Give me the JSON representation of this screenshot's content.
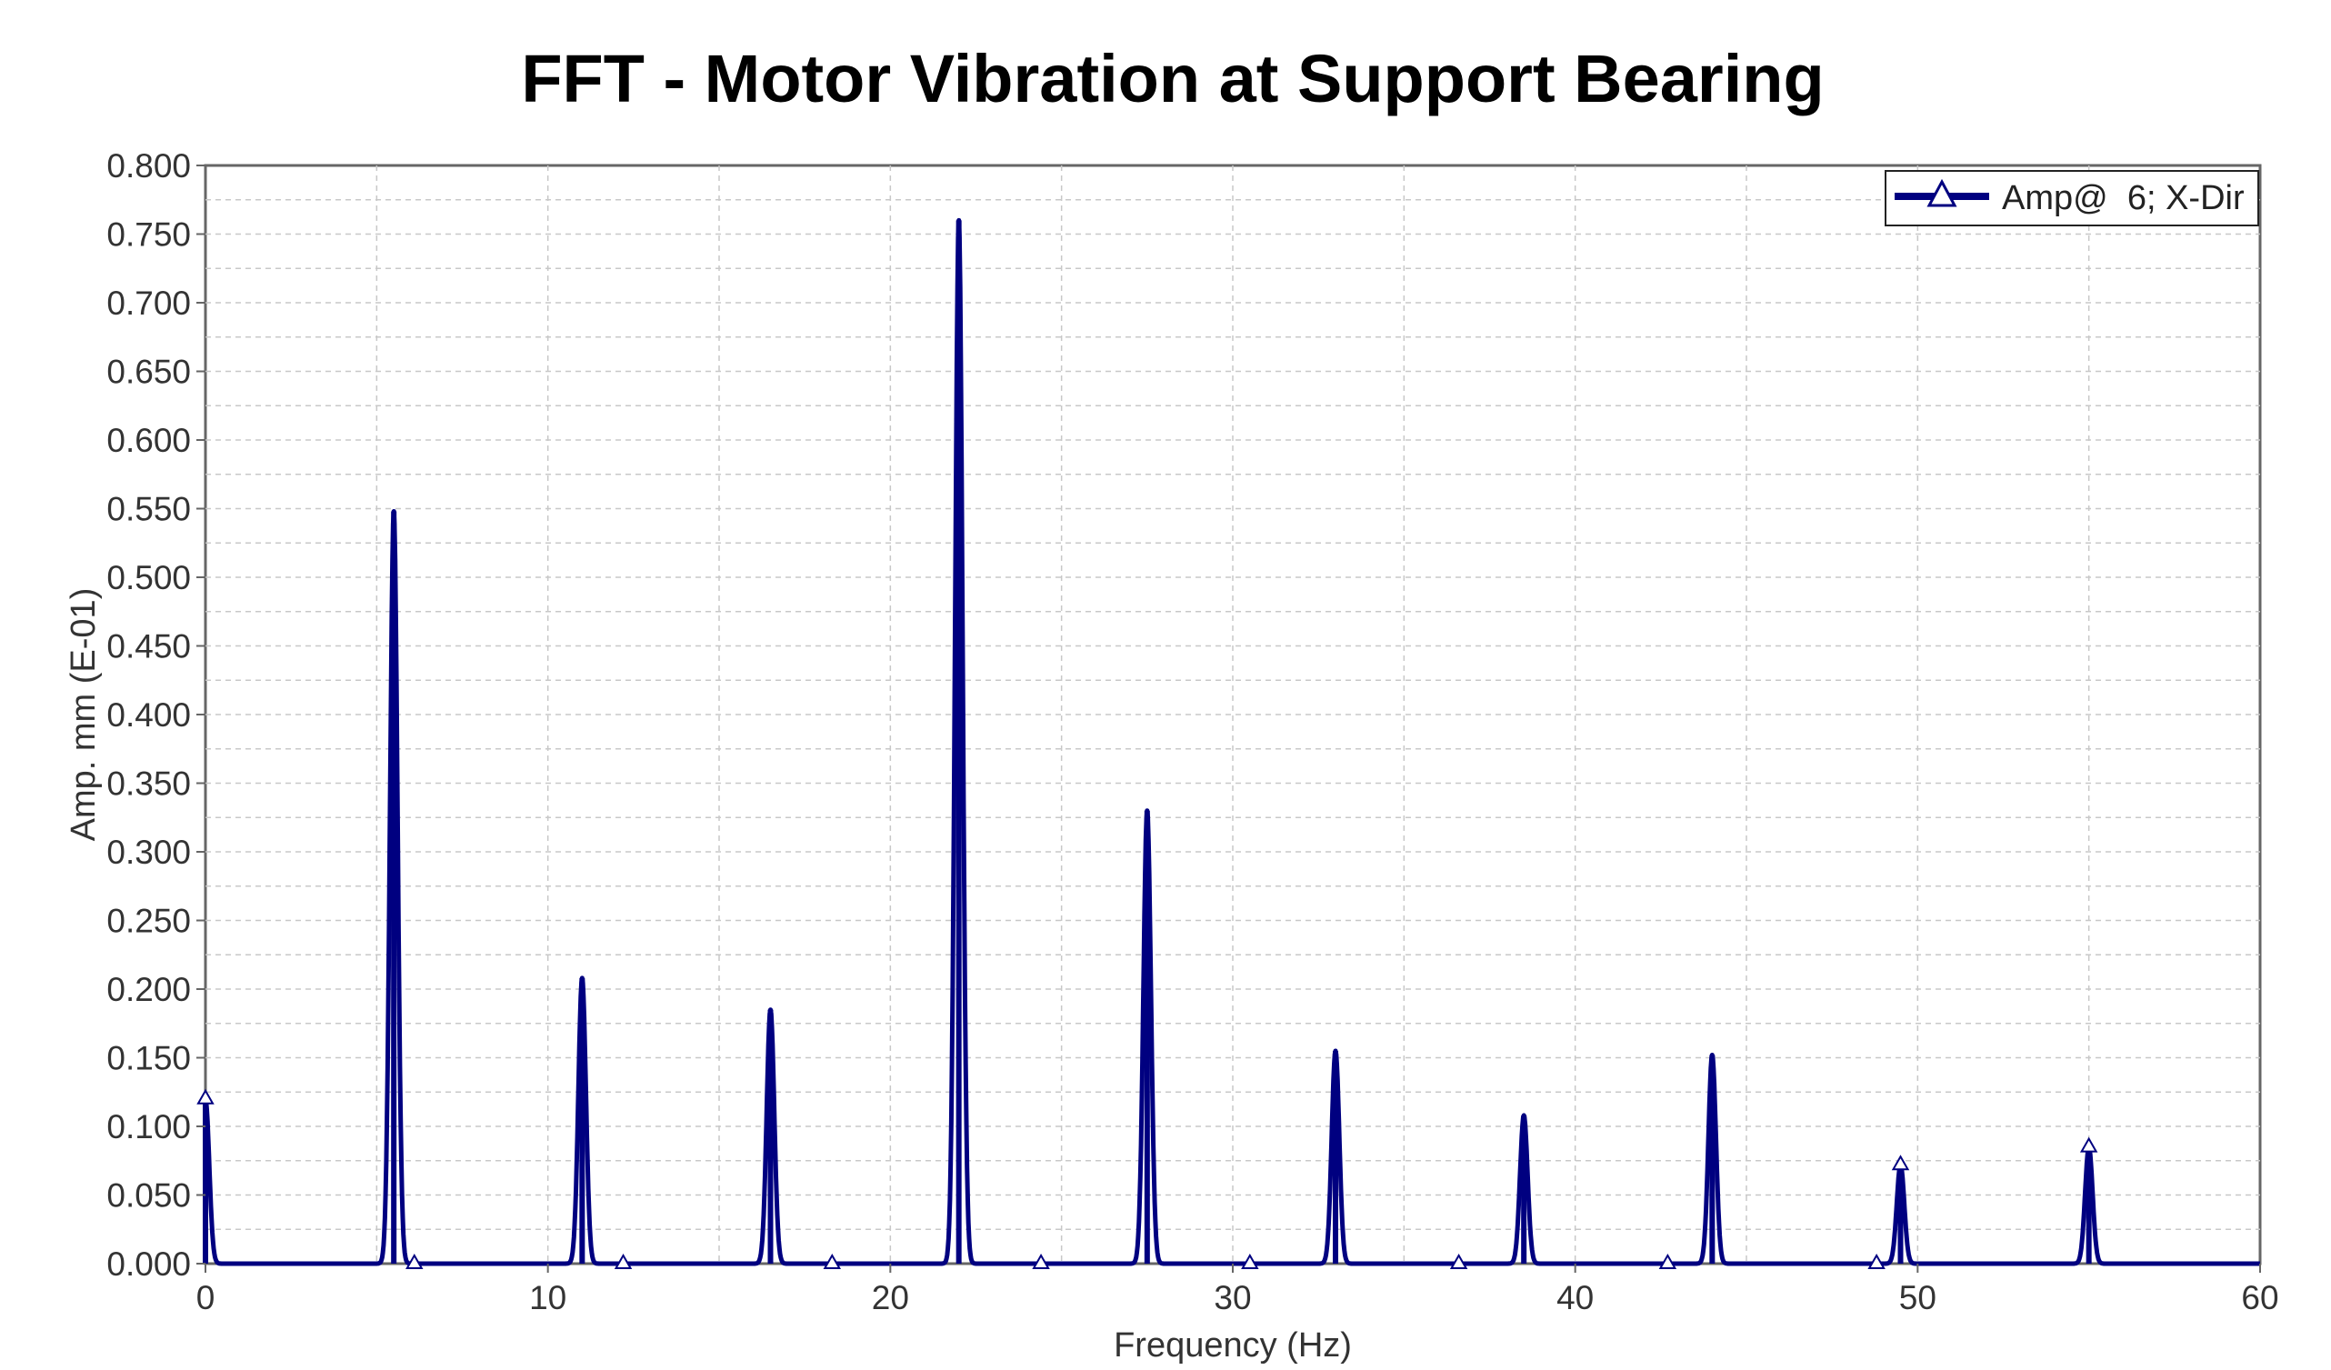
{
  "chart_data": {
    "type": "line",
    "title": "FFT - Motor Vibration at Support Bearing",
    "xlabel": "Frequency (Hz)",
    "ylabel": "Amp. mm (E-01)",
    "xlim": [
      0,
      60
    ],
    "ylim": [
      0,
      0.8
    ],
    "x_ticks": [
      "0",
      "10",
      "20",
      "30",
      "40",
      "50",
      "60"
    ],
    "x_tick_values": [
      0,
      10,
      20,
      30,
      40,
      50,
      60
    ],
    "y_ticks": [
      "0.000",
      "0.050",
      "0.100",
      "0.150",
      "0.200",
      "0.250",
      "0.300",
      "0.350",
      "0.400",
      "0.450",
      "0.500",
      "0.550",
      "0.600",
      "0.650",
      "0.700",
      "0.750",
      "0.800"
    ],
    "y_tick_values": [
      0,
      0.05,
      0.1,
      0.15,
      0.2,
      0.25,
      0.3,
      0.35,
      0.4,
      0.45,
      0.5,
      0.55,
      0.6,
      0.65,
      0.7,
      0.75,
      0.8
    ],
    "grid": true,
    "legend_position": "top-right",
    "series": [
      {
        "name": "Amp@  6; X-Dir",
        "color": "#000080",
        "marker": "triangle",
        "peaks": [
          {
            "x": 0.0,
            "y": 0.12
          },
          {
            "x": 5.5,
            "y": 0.548
          },
          {
            "x": 11.0,
            "y": 0.208
          },
          {
            "x": 16.5,
            "y": 0.185
          },
          {
            "x": 22.0,
            "y": 0.76
          },
          {
            "x": 27.5,
            "y": 0.33
          },
          {
            "x": 33.0,
            "y": 0.155
          },
          {
            "x": 38.5,
            "y": 0.108
          },
          {
            "x": 44.0,
            "y": 0.152
          },
          {
            "x": 49.5,
            "y": 0.072
          },
          {
            "x": 55.0,
            "y": 0.085
          }
        ],
        "marker_x": [
          0,
          6.1,
          12.2,
          18.3,
          24.4,
          30.5,
          36.6,
          42.7,
          48.8,
          49.5,
          55.0
        ]
      }
    ]
  }
}
